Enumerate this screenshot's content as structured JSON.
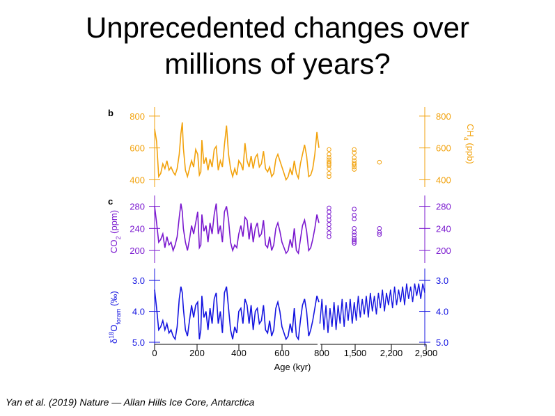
{
  "slide": {
    "title_line1": "Unprecedented changes over",
    "title_line2": "millions of years?",
    "citation": "Yan et al. (2019) Nature — Allan Hills Ice Core, Antarctica"
  },
  "colors": {
    "ch4": "#f2a20c",
    "co2": "#7a18cf",
    "d18o": "#1414e0",
    "axis": "#000000"
  },
  "chart_data": [
    {
      "type": "line",
      "panel_label": "b",
      "ylabel": "CH4 (ppb)",
      "ylim": [
        380,
        830
      ],
      "yticks": [
        800,
        600,
        400
      ],
      "ytick_labels": [
        "800",
        "600",
        "400"
      ],
      "continuous_series": {
        "x_kyr": [
          0,
          10,
          20,
          30,
          40,
          50,
          60,
          70,
          80,
          90,
          100,
          110,
          120,
          128,
          135,
          140,
          150,
          160,
          170,
          180,
          190,
          200,
          210,
          218,
          225,
          230,
          240,
          250,
          260,
          270,
          280,
          290,
          300,
          310,
          320,
          330,
          340,
          350,
          360,
          370,
          380,
          390,
          400,
          410,
          420,
          430,
          440,
          450,
          460,
          470,
          480,
          490,
          500,
          510,
          520,
          530,
          540,
          550,
          560,
          570,
          580,
          590,
          600,
          610,
          620,
          630,
          640,
          650,
          660,
          670,
          680,
          690,
          700,
          710,
          720,
          730,
          740,
          750,
          760,
          770,
          780,
          790,
          800
        ],
        "values": [
          720,
          640,
          420,
          440,
          500,
          470,
          520,
          460,
          480,
          450,
          430,
          470,
          560,
          690,
          760,
          600,
          460,
          420,
          470,
          520,
          480,
          590,
          560,
          430,
          450,
          650,
          500,
          540,
          460,
          530,
          480,
          590,
          610,
          460,
          520,
          480,
          620,
          740,
          560,
          470,
          420,
          470,
          430,
          520,
          500,
          460,
          630,
          520,
          480,
          550,
          470,
          540,
          560,
          480,
          500,
          580,
          470,
          450,
          480,
          420,
          440,
          530,
          560,
          520,
          480,
          440,
          400,
          420,
          470,
          430,
          520,
          440,
          410,
          500,
          560,
          620,
          550,
          420,
          430,
          470,
          560,
          700,
          600
        ]
      },
      "discrete_samples": [
        {
          "age_kyr": 1000,
          "values": [
            590,
            560,
            540,
            525,
            510,
            500,
            490,
            470,
            440,
            420
          ]
        },
        {
          "age_kyr": 1500,
          "values": [
            590,
            570,
            540,
            520,
            505,
            495,
            480,
            465
          ]
        },
        {
          "age_kyr": 2000,
          "values": [
            510
          ]
        }
      ]
    },
    {
      "type": "line",
      "panel_label": "c",
      "ylabel": "CO2 (ppm)",
      "ylim": [
        185,
        292
      ],
      "yticks": [
        280,
        240,
        200
      ],
      "ytick_labels": [
        "280",
        "240",
        "200"
      ],
      "continuous_series": {
        "x_kyr": [
          0,
          10,
          20,
          30,
          40,
          50,
          60,
          70,
          80,
          90,
          100,
          110,
          120,
          128,
          135,
          140,
          150,
          160,
          170,
          180,
          190,
          200,
          210,
          218,
          225,
          230,
          240,
          250,
          260,
          270,
          280,
          290,
          300,
          310,
          320,
          330,
          340,
          350,
          360,
          370,
          380,
          390,
          400,
          410,
          420,
          430,
          440,
          450,
          460,
          470,
          480,
          490,
          500,
          510,
          520,
          530,
          540,
          550,
          560,
          570,
          580,
          590,
          600,
          610,
          620,
          630,
          640,
          650,
          660,
          670,
          680,
          690,
          700,
          710,
          720,
          730,
          740,
          750,
          760,
          770,
          780,
          790,
          800
        ],
        "values": [
          280,
          250,
          215,
          220,
          230,
          205,
          225,
          210,
          215,
          200,
          210,
          225,
          260,
          285,
          270,
          240,
          215,
          200,
          220,
          245,
          230,
          250,
          270,
          205,
          210,
          265,
          235,
          245,
          215,
          250,
          230,
          265,
          285,
          230,
          245,
          215,
          270,
          280,
          255,
          215,
          200,
          210,
          205,
          230,
          245,
          225,
          260,
          255,
          220,
          250,
          215,
          240,
          250,
          225,
          230,
          255,
          210,
          205,
          225,
          200,
          210,
          240,
          250,
          235,
          215,
          205,
          195,
          200,
          220,
          205,
          240,
          200,
          195,
          220,
          245,
          255,
          235,
          200,
          205,
          220,
          240,
          265,
          250
        ]
      },
      "discrete_samples": [
        {
          "age_kyr": 1000,
          "values": [
            277,
            270,
            262,
            255,
            247,
            240,
            232,
            225
          ]
        },
        {
          "age_kyr": 1500,
          "values": [
            275,
            264,
            257,
            240,
            233,
            228,
            222,
            219,
            216,
            213
          ]
        },
        {
          "age_kyr": 2000,
          "values": [
            240,
            233,
            229
          ]
        }
      ]
    },
    {
      "type": "line",
      "panel_label": "",
      "ylabel": "δ18Oforam (‰)",
      "ylim": [
        5.0,
        2.75
      ],
      "inverted": true,
      "yticks": [
        3.0,
        4.0,
        5.0
      ],
      "ytick_labels": [
        "3.0",
        "4.0",
        "5.0"
      ],
      "xlabel": "Age (kyr)",
      "xticks": [
        0,
        200,
        400,
        600,
        800,
        1500,
        2200,
        2900
      ],
      "xtick_labels": [
        "0",
        "200",
        "400",
        "600",
        "800",
        "1,500",
        "2,200",
        "2,900"
      ],
      "axis_break_kyr": 800,
      "continuous_series": {
        "x_kyr": [
          0,
          10,
          20,
          30,
          40,
          50,
          60,
          70,
          80,
          90,
          100,
          110,
          120,
          128,
          135,
          140,
          150,
          160,
          170,
          180,
          190,
          200,
          210,
          218,
          225,
          230,
          240,
          250,
          260,
          270,
          280,
          290,
          300,
          310,
          320,
          330,
          340,
          350,
          360,
          370,
          380,
          390,
          400,
          410,
          420,
          430,
          440,
          450,
          460,
          470,
          480,
          490,
          500,
          510,
          520,
          530,
          540,
          550,
          560,
          570,
          580,
          590,
          600,
          610,
          620,
          630,
          640,
          650,
          660,
          670,
          680,
          690,
          700,
          710,
          720,
          730,
          740,
          750,
          760,
          770,
          780,
          790,
          800
        ],
        "values": [
          3.3,
          3.9,
          4.6,
          4.5,
          4.3,
          4.6,
          4.4,
          4.7,
          4.6,
          4.8,
          4.9,
          4.5,
          3.6,
          3.2,
          3.4,
          3.9,
          4.6,
          4.8,
          4.3,
          3.8,
          4.2,
          3.8,
          3.7,
          4.9,
          4.6,
          3.5,
          4.2,
          4.0,
          4.6,
          3.9,
          4.4,
          3.6,
          3.4,
          4.4,
          4.0,
          4.7,
          3.4,
          3.2,
          3.9,
          4.6,
          4.9,
          4.5,
          4.7,
          4.0,
          3.9,
          4.4,
          3.6,
          3.8,
          4.4,
          3.8,
          4.6,
          4.0,
          3.9,
          4.4,
          4.3,
          3.8,
          4.6,
          4.7,
          4.3,
          4.8,
          4.6,
          3.9,
          3.7,
          4.0,
          4.5,
          4.7,
          4.9,
          4.8,
          4.4,
          4.7,
          3.9,
          4.8,
          4.9,
          4.3,
          3.8,
          3.6,
          4.0,
          4.8,
          4.6,
          4.3,
          3.9,
          3.5,
          3.7
        ]
      },
      "long_series": {
        "x_kyr": [
          820,
          860,
          900,
          940,
          980,
          1020,
          1060,
          1100,
          1140,
          1180,
          1220,
          1260,
          1300,
          1340,
          1380,
          1420,
          1460,
          1500,
          1540,
          1580,
          1620,
          1660,
          1700,
          1740,
          1780,
          1820,
          1860,
          1900,
          1940,
          1980,
          2020,
          2060,
          2100,
          2140,
          2180,
          2220,
          2260,
          2300,
          2340,
          2380,
          2420,
          2460,
          2500,
          2540,
          2580,
          2620,
          2660,
          2700,
          2740,
          2780,
          2820,
          2860,
          2900
        ],
        "values": [
          4.4,
          3.6,
          4.6,
          3.8,
          4.7,
          3.9,
          4.5,
          3.7,
          4.6,
          3.8,
          4.4,
          3.6,
          4.5,
          3.7,
          4.3,
          3.6,
          4.4,
          3.7,
          4.3,
          3.5,
          4.2,
          3.6,
          4.1,
          3.5,
          4.2,
          3.4,
          4.0,
          3.5,
          4.1,
          3.4,
          3.9,
          3.3,
          4.0,
          3.4,
          3.8,
          3.3,
          3.9,
          3.2,
          3.8,
          3.3,
          3.7,
          3.2,
          3.8,
          3.1,
          3.6,
          3.2,
          3.7,
          3.1,
          3.5,
          3.1,
          3.6,
          3.1,
          3.4
        ]
      }
    }
  ]
}
